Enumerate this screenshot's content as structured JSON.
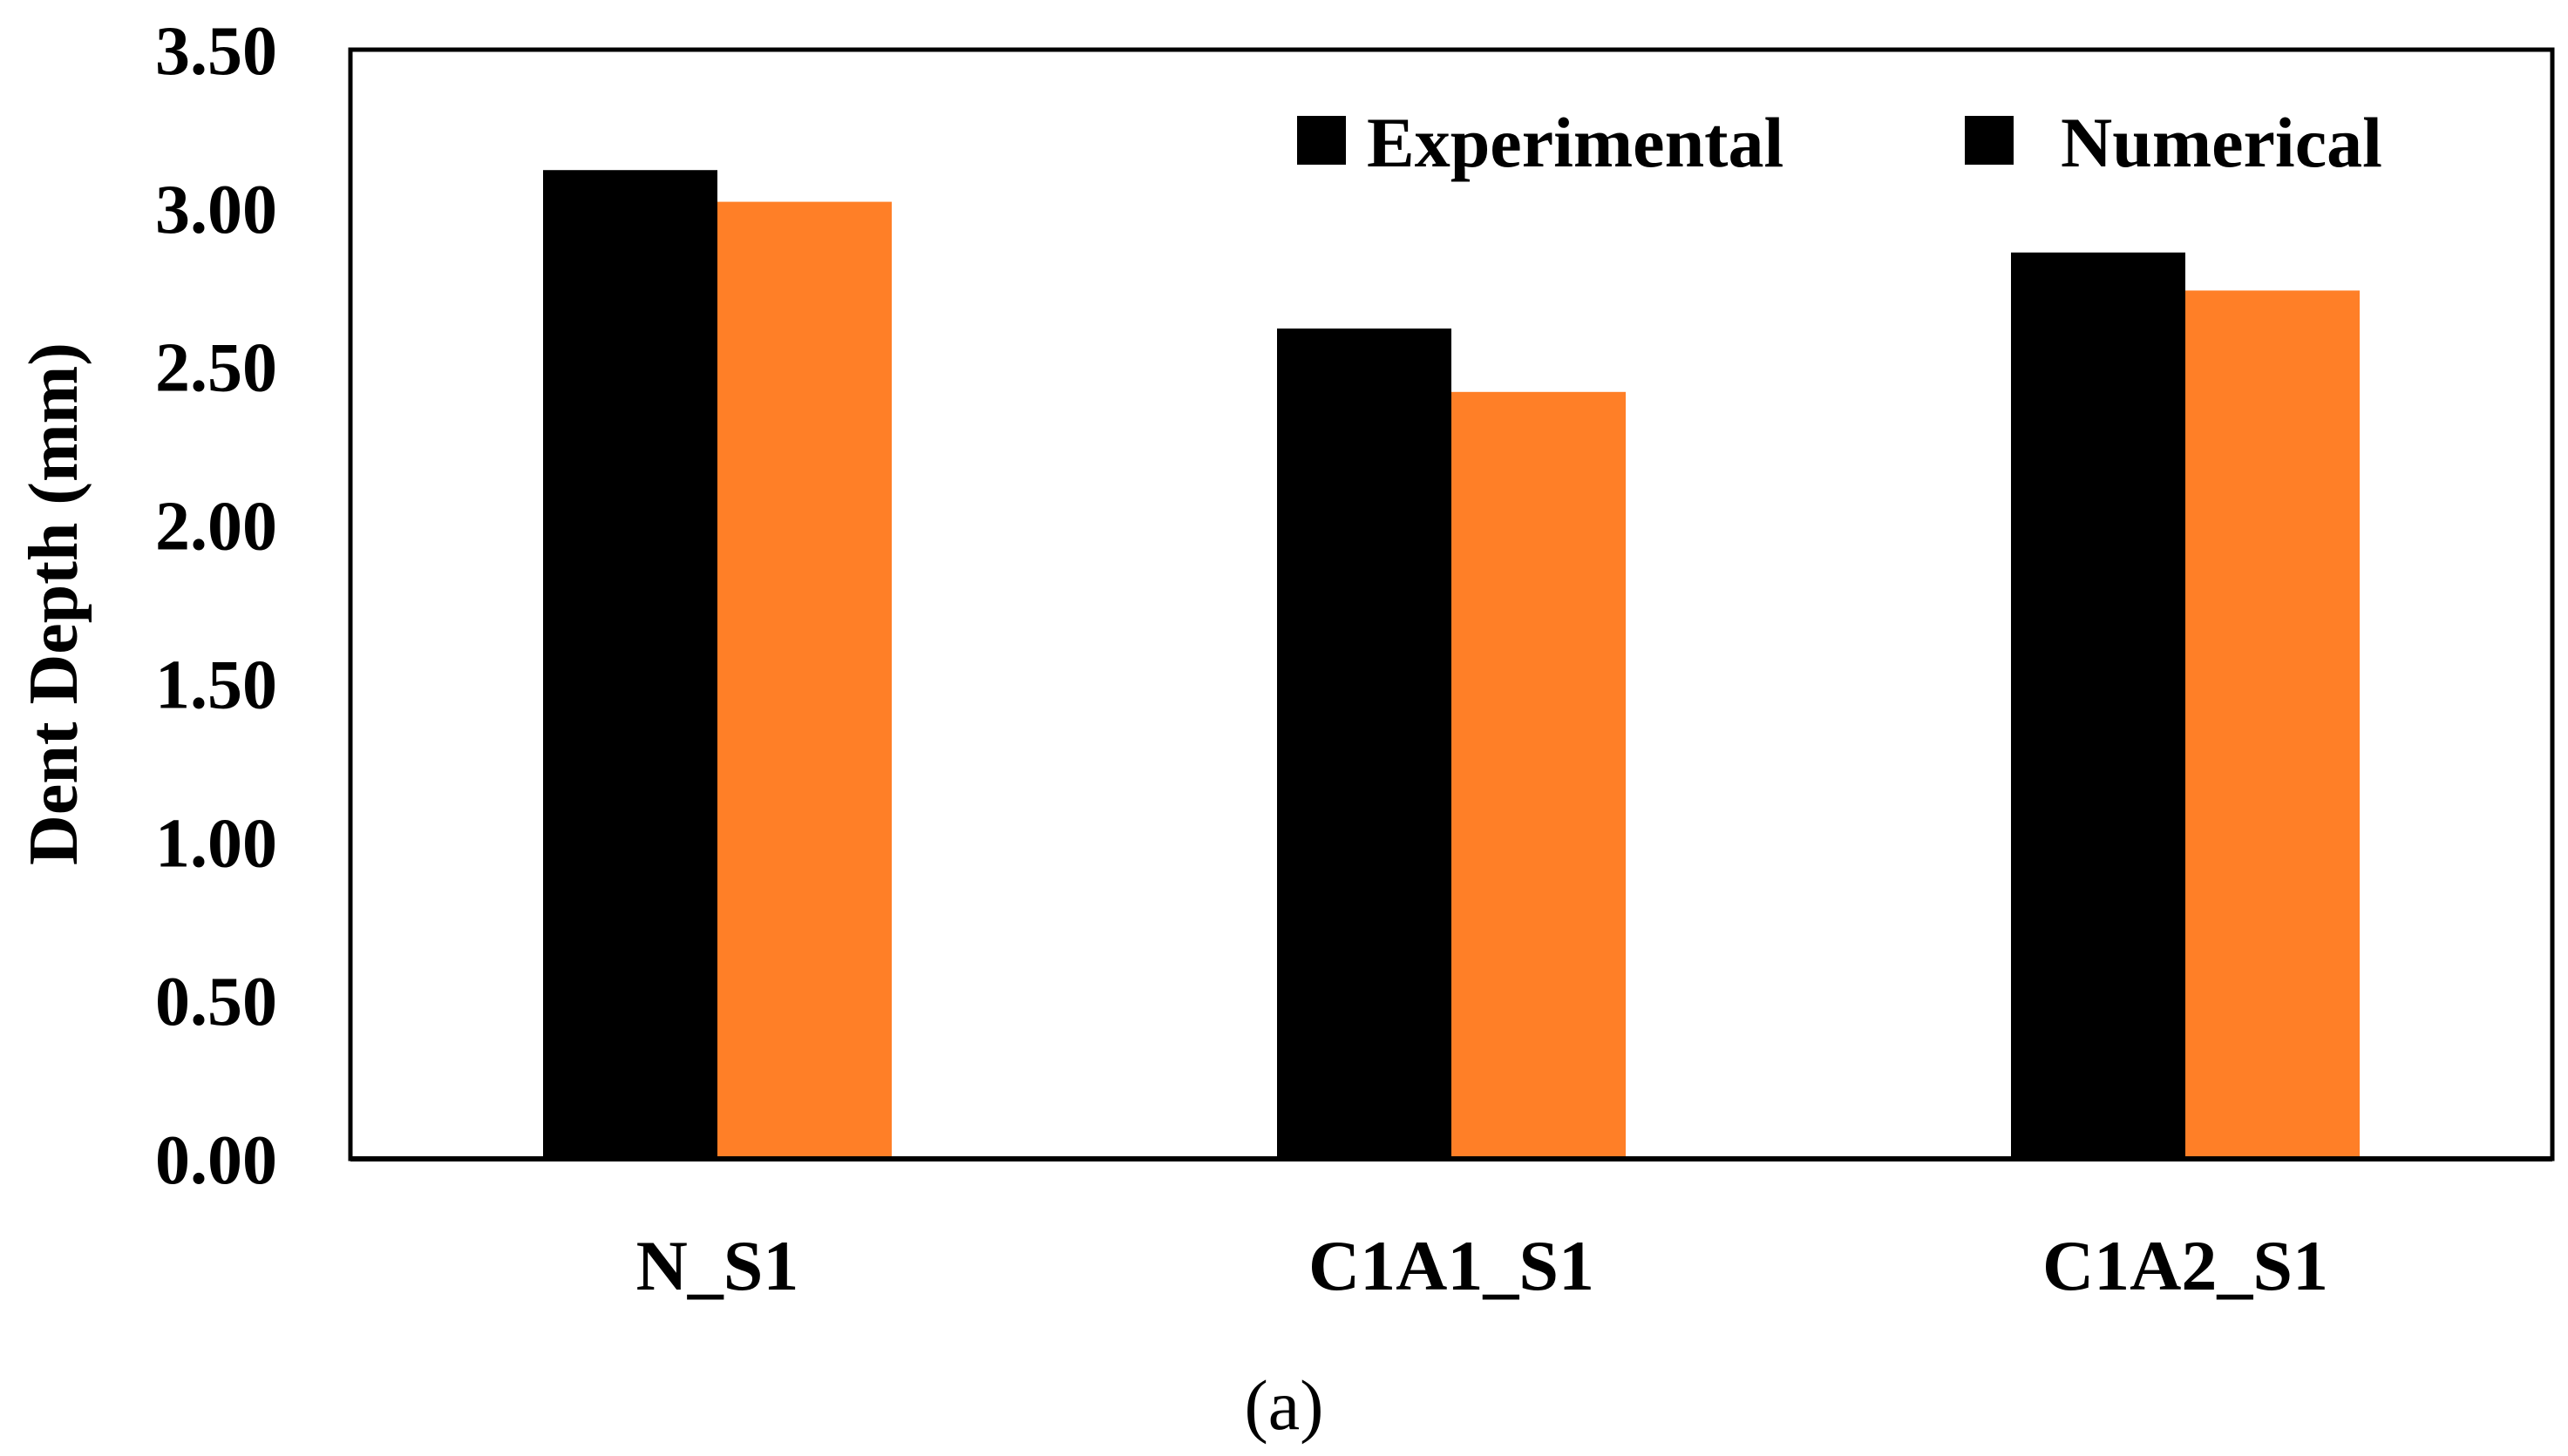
{
  "chart_data": {
    "type": "bar",
    "title": "",
    "xlabel": "",
    "ylabel": "Dent Depth (mm)",
    "ylim": [
      0,
      3.5
    ],
    "yticks": [
      "0.00",
      "0.50",
      "1.00",
      "1.50",
      "2.00",
      "2.50",
      "3.00",
      "3.50"
    ],
    "categories": [
      "N_S1",
      "C1A1_S1",
      "C1A2_S1"
    ],
    "series": [
      {
        "name": "Experimental",
        "color": "#000000",
        "values": [
          3.12,
          2.62,
          2.86
        ]
      },
      {
        "name": "Numerical",
        "color": "#FF7F27",
        "values": [
          3.02,
          2.42,
          2.74
        ]
      }
    ],
    "legend": "top-right",
    "grid": false
  },
  "caption": "(a)"
}
